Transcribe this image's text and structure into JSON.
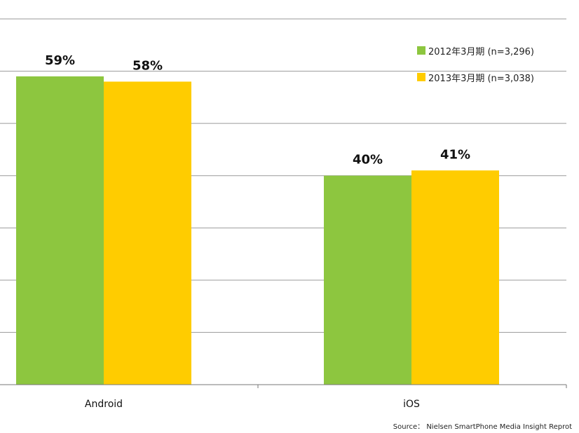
{
  "chart_data": {
    "type": "bar",
    "categories": [
      "Android",
      "iOS"
    ],
    "series": [
      {
        "name": "2012年3月期 (n=3,296)",
        "values": [
          59,
          40
        ],
        "labels": [
          "59%",
          "40%"
        ],
        "color": "#8DC63F"
      },
      {
        "name": "2013年3月期 (n=3,038)",
        "values": [
          58,
          41
        ],
        "labels": [
          "58%",
          "41%"
        ],
        "color": "#FFCC00"
      }
    ],
    "ylim": [
      0,
      70
    ],
    "grid": true,
    "legend_position": "top-right",
    "source": "Source： Nielsen SmartPhone Media Insight Reprot"
  }
}
